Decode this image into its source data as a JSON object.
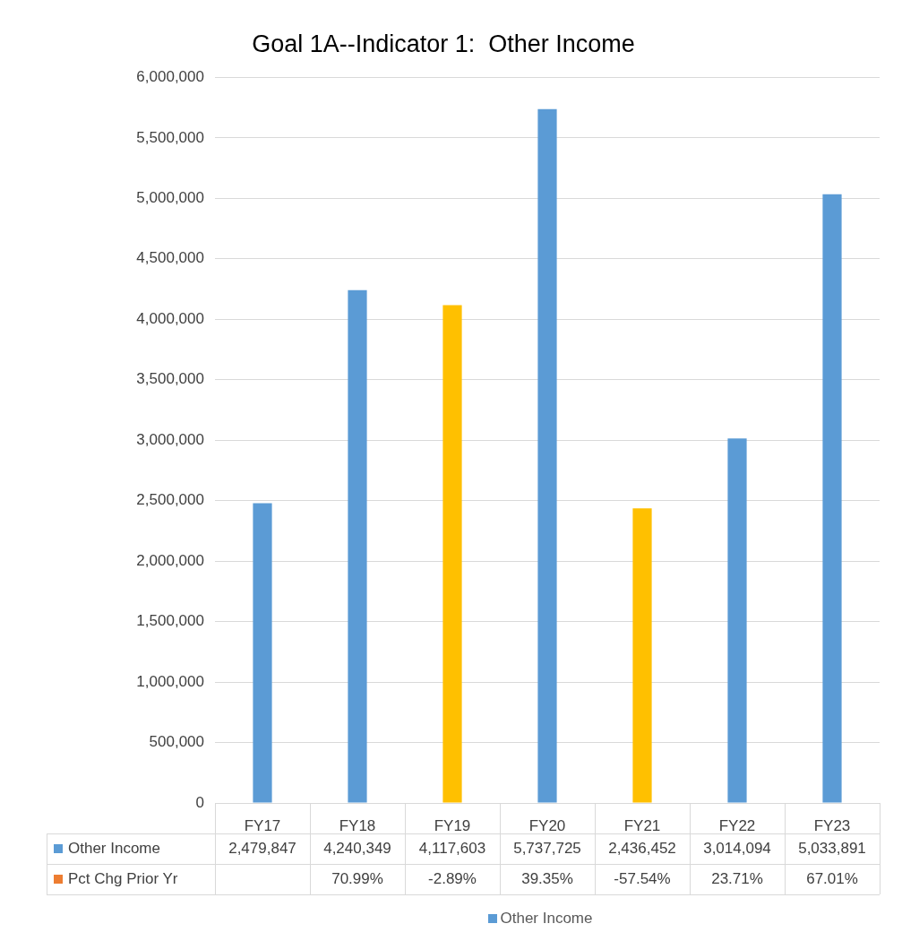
{
  "chart_data": {
    "type": "bar",
    "title": "Goal 1A--Indicator 1:  Other Income",
    "categories": [
      "FY17",
      "FY18",
      "FY19",
      "FY20",
      "FY21",
      "FY22",
      "FY23"
    ],
    "series": [
      {
        "name": "Other Income",
        "type": "bar",
        "color": "#5b9bd5",
        "colors": [
          "#5b9bd5",
          "#5b9bd5",
          "#ffc000",
          "#5b9bd5",
          "#ffc000",
          "#5b9bd5",
          "#5b9bd5"
        ],
        "values": [
          2479847,
          4240349,
          4117603,
          5737725,
          2436452,
          3014094,
          5033891
        ],
        "value_labels": [
          "2,479,847",
          "4,240,349",
          "4,117,603",
          "5,737,725",
          "2,436,452",
          "3,014,094",
          "5,033,891"
        ]
      }
    ],
    "annotations": [
      "Pct Chg Prior Yr",
      "70.99%",
      "-2.89%",
      "39.35%",
      "-57.54%",
      "23.71%",
      "67.01%"
    ],
    "ylim": [
      0,
      6000000
    ],
    "yticks": [
      {
        "value": 0,
        "label": "0"
      },
      {
        "value": 500000,
        "label": "500,000"
      },
      {
        "value": 1000000,
        "label": "1,000,000"
      },
      {
        "value": 1500000,
        "label": "1,500,000"
      },
      {
        "value": 2000000,
        "label": "2,000,000"
      },
      {
        "value": 2500000,
        "label": "2,500,000"
      },
      {
        "value": 3000000,
        "label": "3,000,000"
      },
      {
        "value": 3500000,
        "label": "3,500,000"
      },
      {
        "value": 4000000,
        "label": "4,000,000"
      },
      {
        "value": 4500000,
        "label": "4,500,000"
      },
      {
        "value": 5000000,
        "label": "5,000,000"
      },
      {
        "value": 5500000,
        "label": "5,500,000"
      },
      {
        "value": 6000000,
        "label": "6,000,000"
      }
    ],
    "grid": "y",
    "legend": "bottom"
  }
}
